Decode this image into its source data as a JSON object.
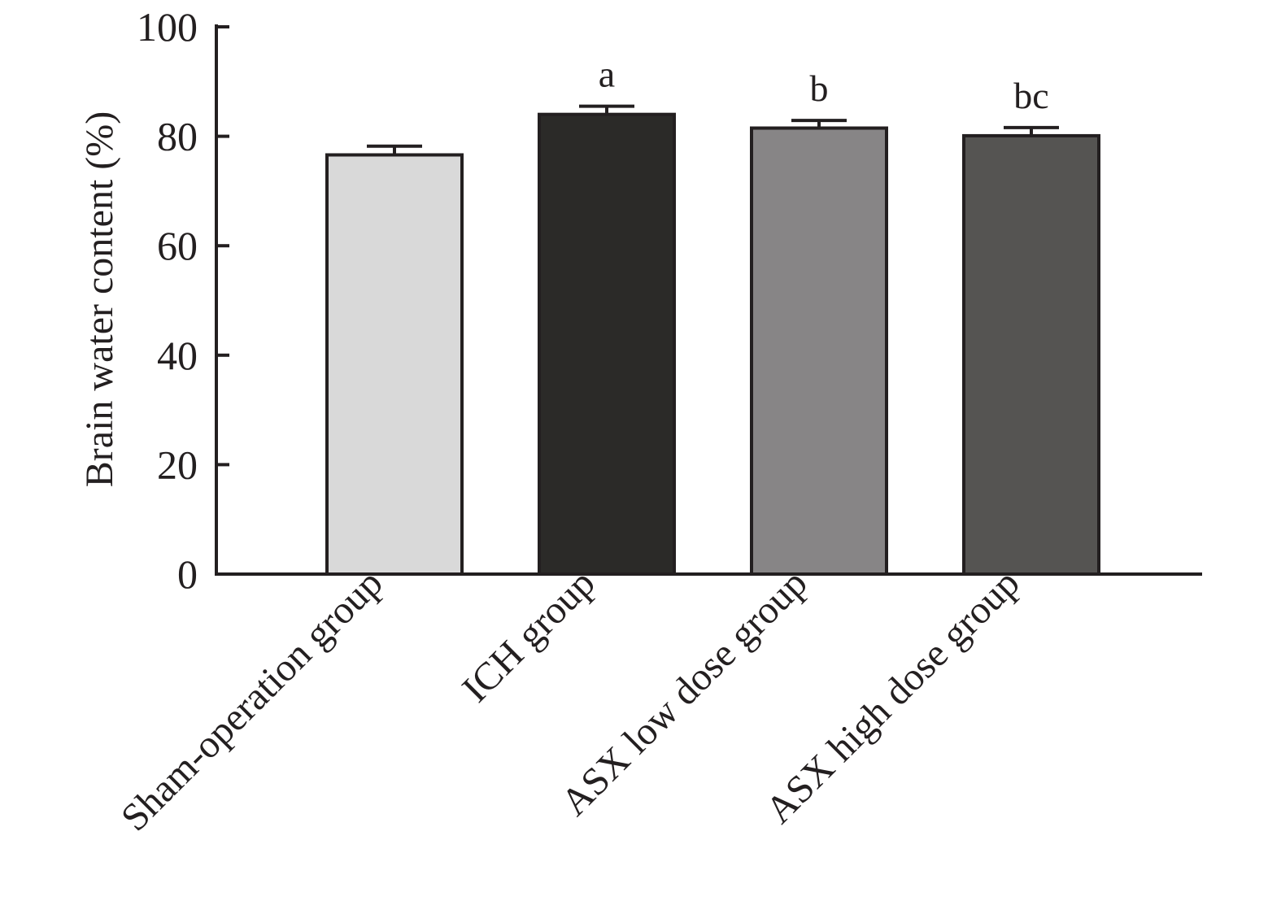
{
  "chart_data": {
    "type": "bar",
    "title": "",
    "xlabel": "",
    "ylabel": "Brain water content (%)",
    "ylim": [
      0,
      100
    ],
    "yticks": [
      0,
      20,
      40,
      60,
      80,
      100
    ],
    "grid": false,
    "legend": "none",
    "categories": [
      "Sham-operation group",
      "ICH group",
      "ASX low dose group",
      "ASX high dose group"
    ],
    "values": [
      76.6,
      84.0,
      81.5,
      80.1
    ],
    "error": [
      1.6,
      1.5,
      1.4,
      1.5
    ],
    "annotations": [
      "",
      "a",
      "b",
      "bc"
    ],
    "colors": [
      "#d9d9d9",
      "#2b2a28",
      "#878586",
      "#555452"
    ],
    "edge_color": "#231f20"
  }
}
